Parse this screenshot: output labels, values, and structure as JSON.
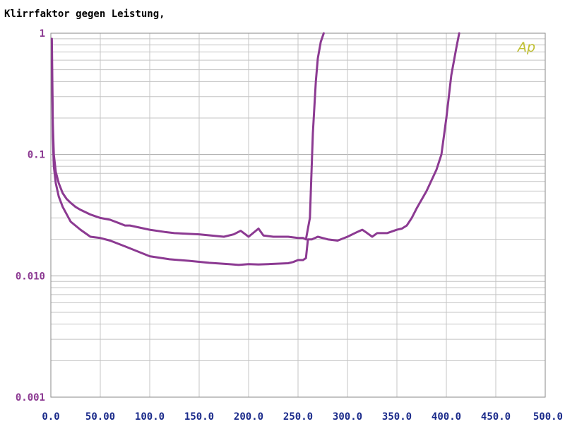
{
  "chart_data": {
    "type": "line",
    "title": "Klirrfaktor gegen Leistung,",
    "xlabel": "",
    "ylabel": "",
    "xlim": [
      0,
      500
    ],
    "ylim": [
      0.001,
      1
    ],
    "y_scale": "log",
    "grid": true,
    "x_ticks": [
      "0.0",
      "50.00",
      "100.0",
      "150.0",
      "200.0",
      "250.0",
      "300.0",
      "350.0",
      "400.0",
      "450.0",
      "500.0"
    ],
    "y_ticks": [
      {
        "value": 1,
        "label": "1"
      },
      {
        "value": 0.1,
        "label": "0.1"
      },
      {
        "value": 0.01,
        "label": "0.010"
      },
      {
        "value": 0.001,
        "label": "0.001"
      }
    ],
    "logo": "Ap",
    "colors": {
      "series": "#8c3a92",
      "grid": "#c4c4c4",
      "frame": "#8a8a8a",
      "title": "#000000",
      "y_tick_labels": "#8c3a92",
      "x_tick_labels": "#1a2a8a",
      "logo": "#c0c030"
    },
    "series": [
      {
        "x": [
          1,
          2,
          3,
          5,
          8,
          12,
          16,
          20,
          25,
          30,
          40,
          50,
          60,
          70,
          75,
          80,
          100,
          115,
          125,
          150,
          175,
          185,
          192,
          200,
          210,
          215,
          225,
          240,
          250,
          255,
          258,
          262,
          265,
          268,
          270,
          273,
          276
        ],
        "y": [
          0.9,
          0.18,
          0.1,
          0.072,
          0.058,
          0.048,
          0.043,
          0.04,
          0.037,
          0.035,
          0.032,
          0.03,
          0.029,
          0.027,
          0.026,
          0.026,
          0.024,
          0.023,
          0.0225,
          0.022,
          0.021,
          0.022,
          0.0235,
          0.021,
          0.0245,
          0.0215,
          0.021,
          0.021,
          0.0205,
          0.0205,
          0.02,
          0.03,
          0.15,
          0.4,
          0.62,
          0.85,
          1.0
        ]
      },
      {
        "x": [
          1,
          2,
          3,
          5,
          8,
          12,
          20,
          30,
          40,
          50,
          60,
          75,
          100,
          120,
          140,
          160,
          180,
          190,
          200,
          210,
          220,
          240,
          245,
          250,
          255,
          258,
          260,
          264,
          270,
          280,
          290,
          300,
          310,
          315,
          320,
          325,
          330,
          340,
          350,
          355,
          360,
          365,
          370,
          380,
          390,
          395,
          400,
          405,
          410,
          413
        ],
        "y": [
          0.6,
          0.14,
          0.08,
          0.058,
          0.045,
          0.037,
          0.028,
          0.024,
          0.021,
          0.0205,
          0.0195,
          0.0175,
          0.0145,
          0.0137,
          0.0133,
          0.0128,
          0.0125,
          0.0123,
          0.0125,
          0.0124,
          0.0125,
          0.0127,
          0.013,
          0.0135,
          0.0135,
          0.014,
          0.02,
          0.02,
          0.021,
          0.02,
          0.0195,
          0.021,
          0.023,
          0.024,
          0.0225,
          0.021,
          0.0225,
          0.0225,
          0.024,
          0.0245,
          0.026,
          0.03,
          0.036,
          0.05,
          0.075,
          0.1,
          0.2,
          0.45,
          0.75,
          1.0
        ]
      }
    ]
  }
}
